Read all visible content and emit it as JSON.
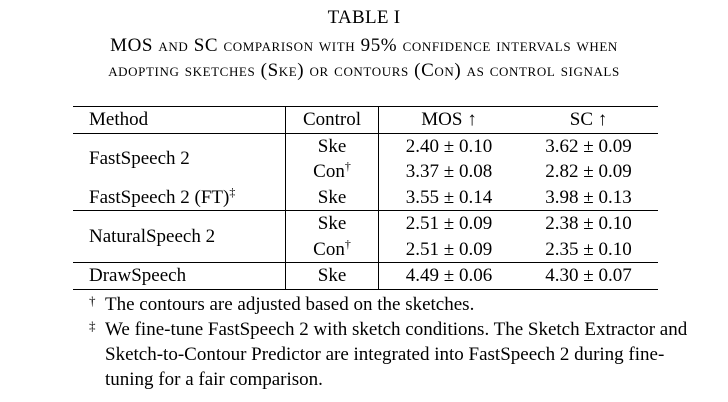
{
  "title": "TABLE I",
  "caption": {
    "line1": "MOS and SC comparison with 95% confidence intervals when",
    "line2": "adopting sketches (Ske) or contours (Con) as control signals"
  },
  "table": {
    "headers": {
      "method": "Method",
      "control": "Control",
      "mos": "MOS ↑",
      "sc": "SC ↑"
    },
    "rows": [
      {
        "method": "FastSpeech 2",
        "control": "Ske",
        "mos": "2.40 ± 0.10",
        "sc": "3.62 ± 0.09"
      },
      {
        "method": "",
        "control": "Con",
        "control_mark": "†",
        "mos": "3.37 ± 0.08",
        "sc": "2.82 ± 0.09"
      },
      {
        "method": "FastSpeech 2 (FT)",
        "method_mark": "‡",
        "control": "Ske",
        "mos": "3.55 ± 0.14",
        "sc": "3.98 ± 0.13"
      },
      {
        "method": "NaturalSpeech 2",
        "control": "Ske",
        "mos": "2.51 ± 0.09",
        "sc": "2.38 ± 0.10"
      },
      {
        "method": "",
        "control": "Con",
        "control_mark": "†",
        "mos": "2.51 ± 0.09",
        "sc": "2.35 ± 0.10"
      },
      {
        "method": "DrawSpeech",
        "control": "Ske",
        "mos": "4.49 ± 0.06",
        "sc": "4.30 ± 0.07"
      }
    ]
  },
  "footnotes": {
    "dagger_mark": "†",
    "dagger_text": "The contours are adjusted based on the sketches.",
    "ddagger_mark": "‡",
    "ddagger_text": "We fine-tune FastSpeech 2 with sketch conditions. The Sketch Extractor and Sketch-to-Contour Predictor are integrated into FastSpeech 2 during fine-tuning for a fair comparison."
  }
}
